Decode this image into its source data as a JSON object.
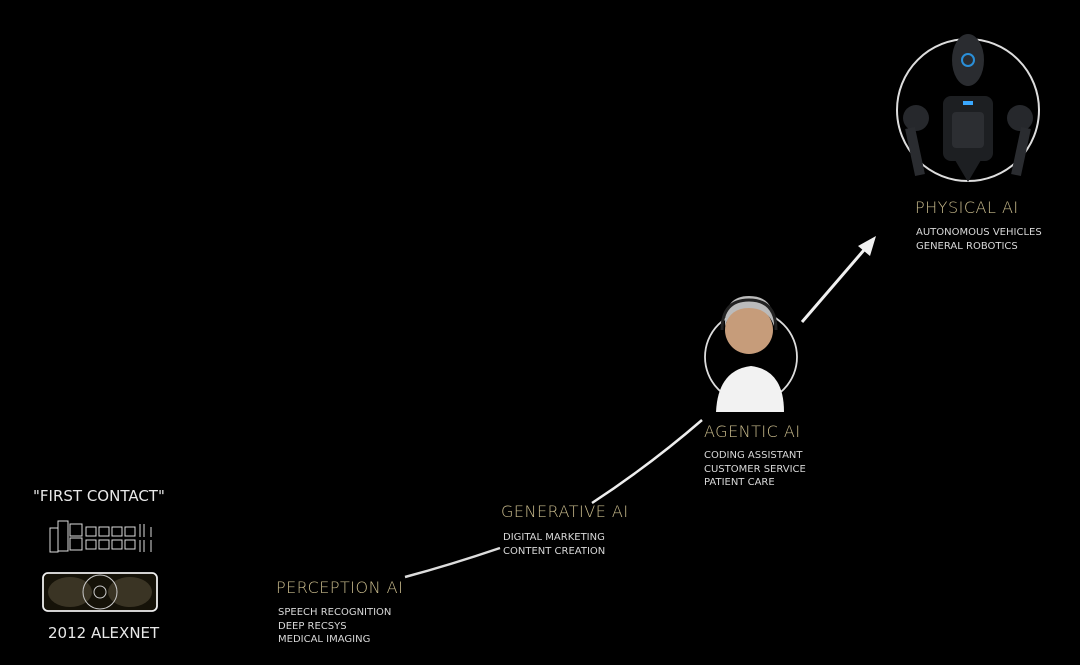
{
  "colors": {
    "background": "#000000",
    "stage_title": "#c9bb8c",
    "text": "#d8d8d8",
    "path": "#f0f0f0"
  },
  "origin": {
    "caption_top": "\"FIRST CONTACT\"",
    "caption_bottom": "2012 ALEXNET",
    "icons": [
      "neural-network-icon",
      "gpu-card-icon"
    ]
  },
  "stages": [
    {
      "title": "PERCEPTION AI",
      "items": [
        "SPEECH RECOGNITION",
        "DEEP RECSYS",
        "MEDICAL IMAGING"
      ]
    },
    {
      "title": "GENERATIVE AI",
      "items": [
        "DIGITAL MARKETING",
        "CONTENT CREATION"
      ]
    },
    {
      "title": "AGENTIC AI",
      "items": [
        "CODING ASSISTANT",
        "CUSTOMER SERVICE",
        "PATIENT CARE"
      ],
      "icon": "agent-avatar-icon"
    },
    {
      "title": "PHYSICAL AI",
      "items": [
        "AUTONOMOUS VEHICLES",
        "GENERAL ROBOTICS"
      ],
      "icon": "humanoid-robot-icon"
    }
  ]
}
